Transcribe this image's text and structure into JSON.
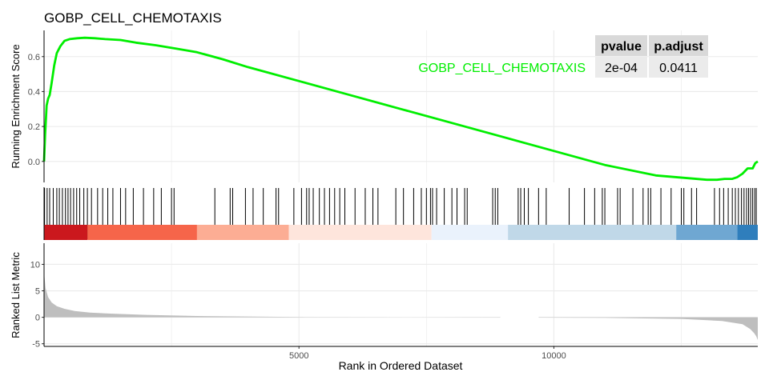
{
  "chart_data": {
    "type": "line",
    "title": "GOBP_CELL_CHEMOTAXIS",
    "xlabel": "Rank in Ordered Dataset",
    "xlim": [
      0,
      14000
    ],
    "x_ticks": [
      5000,
      10000
    ],
    "x_tick_labels": [
      "5000",
      "10000"
    ],
    "colors": {
      "enrichment_line": "#00ee00",
      "hit_line": "#000000",
      "metric_fill": "#bebebe",
      "grid": "#ebebeb"
    },
    "es_panel": {
      "ylabel": "Running Enrichment Score",
      "ylim": [
        -0.12,
        0.75
      ],
      "y_ticks": [
        0.0,
        0.2,
        0.4,
        0.6
      ],
      "y_tick_labels": [
        "0.0",
        "0.2",
        "0.4",
        "0.6"
      ],
      "series": [
        {
          "name": "GOBP_CELL_CHEMOTAXIS",
          "x": [
            0,
            20,
            50,
            80,
            110,
            150,
            200,
            250,
            320,
            400,
            500,
            650,
            800,
            1000,
            1200,
            1500,
            1800,
            2200,
            2600,
            3000,
            3500,
            4000,
            5000,
            6000,
            7000,
            8000,
            9000,
            10000,
            11000,
            12000,
            13000,
            13200,
            13350,
            13500,
            13600,
            13700,
            13800,
            13900,
            13950,
            14000
          ],
          "y": [
            0.0,
            0.15,
            0.32,
            0.36,
            0.38,
            0.45,
            0.55,
            0.62,
            0.66,
            0.69,
            0.7,
            0.705,
            0.708,
            0.705,
            0.7,
            0.695,
            0.68,
            0.665,
            0.645,
            0.625,
            0.585,
            0.54,
            0.46,
            0.38,
            0.3,
            0.22,
            0.14,
            0.06,
            -0.02,
            -0.08,
            -0.105,
            -0.105,
            -0.1,
            -0.1,
            -0.09,
            -0.07,
            -0.04,
            -0.04,
            -0.01,
            0.0
          ]
        }
      ]
    },
    "hits_panel": {
      "hit_positions": [
        10,
        60,
        110,
        180,
        250,
        300,
        360,
        420,
        470,
        520,
        580,
        640,
        700,
        780,
        850,
        930,
        1050,
        1150,
        1250,
        1350,
        1500,
        1600,
        1750,
        1950,
        2150,
        2300,
        2500,
        2550,
        3350,
        3650,
        3700,
        3950,
        4100,
        4300,
        4550,
        4600,
        4900,
        5050,
        5150,
        5200,
        5280,
        5400,
        5500,
        5600,
        5700,
        5800,
        5900,
        6100,
        6300,
        6450,
        6550,
        6900,
        7050,
        7250,
        7400,
        7500,
        7580,
        7620,
        7700,
        7850,
        8000,
        8100,
        8250,
        8300,
        8800,
        8850,
        8900,
        9300,
        9350,
        9420,
        9500,
        9700,
        9850,
        10300,
        10600,
        10800,
        10950,
        11000,
        11250,
        11300,
        11550,
        11750,
        11850,
        11900,
        12100,
        12300,
        12500,
        12550,
        12700,
        12800,
        13150,
        13250,
        13330,
        13420,
        13500,
        13560,
        13620,
        13680,
        13730,
        13780,
        13820,
        13860,
        13900,
        13940,
        13970
      ],
      "color_bands": [
        {
          "from": 0,
          "to": 850,
          "color": "#cb181d"
        },
        {
          "from": 850,
          "to": 3000,
          "color": "#f6654a"
        },
        {
          "from": 3000,
          "to": 4800,
          "color": "#fcad94"
        },
        {
          "from": 4800,
          "to": 7600,
          "color": "#fee5dc"
        },
        {
          "from": 7600,
          "to": 9100,
          "color": "#eaf2fc"
        },
        {
          "from": 9100,
          "to": 12400,
          "color": "#c0d8e8"
        },
        {
          "from": 12400,
          "to": 13600,
          "color": "#6fa7d2"
        },
        {
          "from": 13600,
          "to": 14000,
          "color": "#2f7ebc"
        }
      ]
    },
    "metric_panel": {
      "ylabel": "Ranked List Metric",
      "ylim": [
        -5.5,
        14
      ],
      "y_ticks": [
        -5,
        0,
        5,
        10
      ],
      "y_tick_labels": [
        "-5",
        "0",
        "5",
        "10"
      ],
      "gap_ranges": [
        [
          8950,
          9700
        ]
      ],
      "x": [
        0,
        30,
        80,
        150,
        250,
        400,
        600,
        900,
        1300,
        2000,
        3000,
        5000,
        8000,
        11000,
        12500,
        13300,
        13700,
        13850,
        13930,
        13970,
        14000
      ],
      "y": [
        8.5,
        5.5,
        3.8,
        2.8,
        2.1,
        1.6,
        1.2,
        0.9,
        0.7,
        0.45,
        0.25,
        0.05,
        -0.02,
        -0.1,
        -0.3,
        -0.7,
        -1.3,
        -2.2,
        -3.0,
        -3.6,
        -4.3
      ]
    },
    "stats_table": {
      "series_label": "GOBP_CELL_CHEMOTAXIS",
      "headers": [
        "pvalue",
        "p.adjust"
      ],
      "values": [
        "2e-04",
        "0.0411"
      ]
    }
  }
}
